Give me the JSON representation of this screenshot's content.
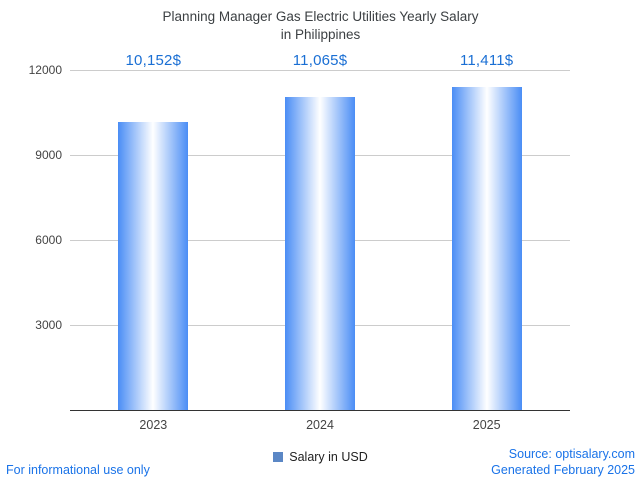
{
  "chart_data": {
    "type": "bar",
    "title": "Planning Manager Gas Electric Utilities Yearly Salary\nin Philippines",
    "categories": [
      "2023",
      "2024",
      "2025"
    ],
    "series": [
      {
        "name": "Salary in USD",
        "values": [
          10152,
          11065,
          11411
        ]
      }
    ],
    "value_labels": [
      "10,152$",
      "11,065$",
      "11,411$"
    ],
    "xlabel": "",
    "ylabel": "",
    "ylim": [
      0,
      12000
    ],
    "yticks": [
      3000,
      6000,
      9000,
      12000
    ],
    "grid": true,
    "legend": {
      "position": "bottom",
      "label": "Salary in USD"
    }
  },
  "footer": {
    "disclaimer": "For informational use only",
    "source": "Source: optisalary.com",
    "generated": "Generated February 2025"
  },
  "colors": {
    "bar_edge": "#4a8df5",
    "bar_center": "#ffffff",
    "value_label": "#1a6fd4",
    "link": "#1a73e8",
    "title": "#3c4043",
    "axis_label": "#444444",
    "gridline": "#cccccc",
    "baseline": "#333333",
    "legend_swatch": "#5b87c5"
  }
}
